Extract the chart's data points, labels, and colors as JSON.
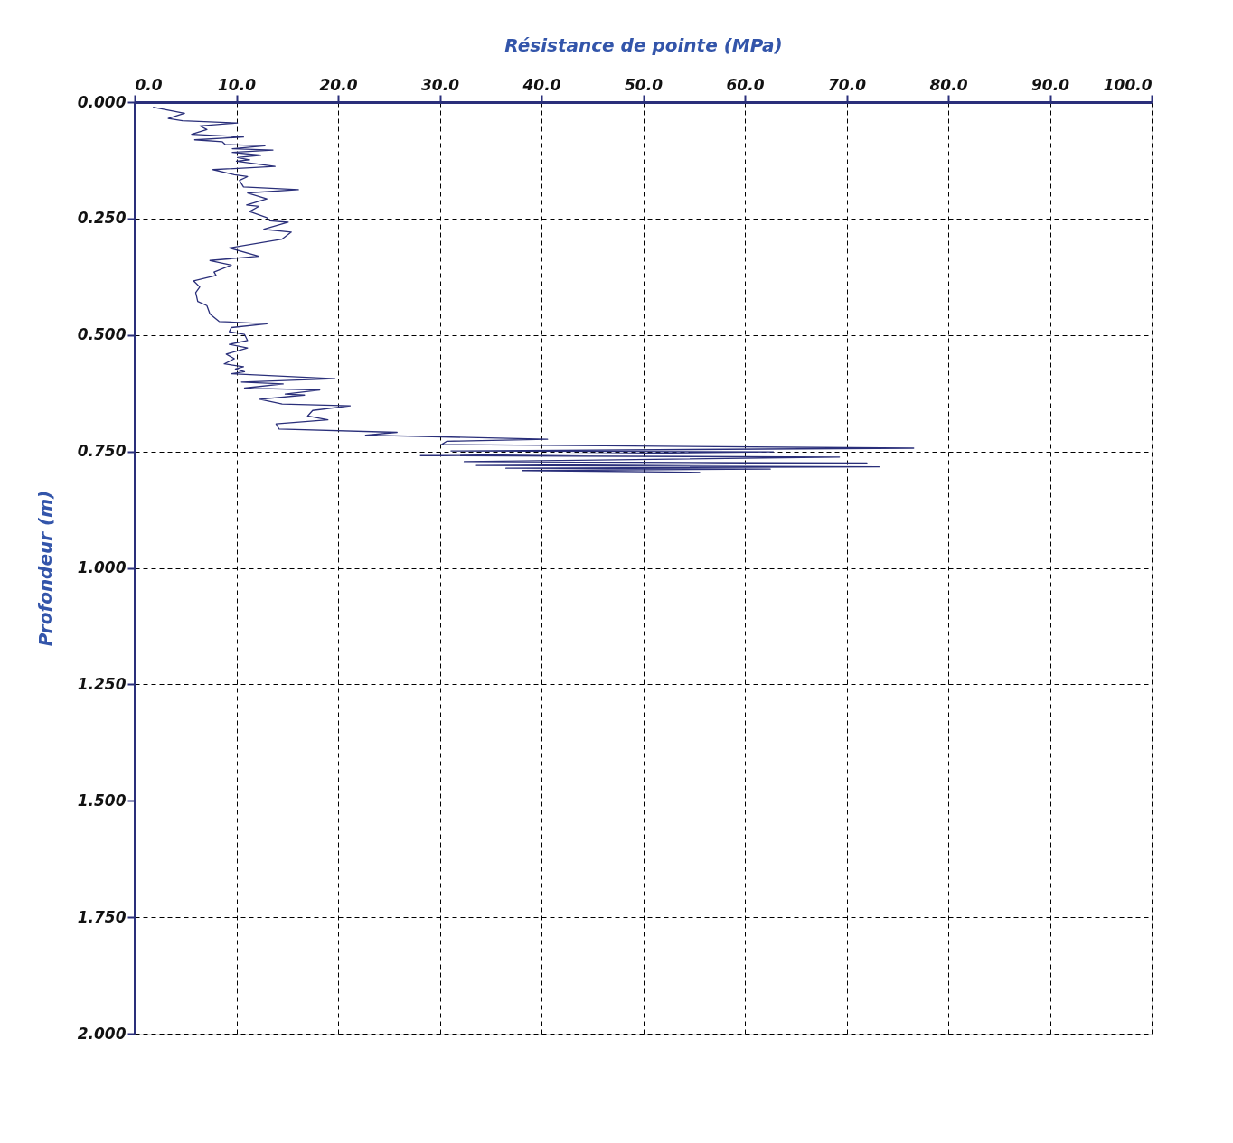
{
  "chart_data": {
    "type": "line",
    "xlabel": "Résistance de pointe (MPa)",
    "ylabel": "Profondeur (m)",
    "xlim": [
      0,
      100
    ],
    "xticks": [
      {
        "value": 0,
        "label": "0.0"
      },
      {
        "value": 10,
        "label": "10.0"
      },
      {
        "value": 20,
        "label": "20.0"
      },
      {
        "value": 30,
        "label": "30.0"
      },
      {
        "value": 40,
        "label": "40.0"
      },
      {
        "value": 50,
        "label": "50.0"
      },
      {
        "value": 60,
        "label": "60.0"
      },
      {
        "value": 70,
        "label": "70.0"
      },
      {
        "value": 80,
        "label": "80.0"
      },
      {
        "value": 90,
        "label": "90.0"
      },
      {
        "value": 100,
        "label": "100.0"
      }
    ],
    "ylim": [
      2.0,
      0.0
    ],
    "yticks": [
      {
        "value": 0,
        "label": "0.000"
      },
      {
        "value": 0.25,
        "label": "0.250"
      },
      {
        "value": 0.5,
        "label": "0.500"
      },
      {
        "value": 0.75,
        "label": "0.750"
      },
      {
        "value": 1.0,
        "label": "1.000"
      },
      {
        "value": 1.25,
        "label": "1.250"
      },
      {
        "value": 1.5,
        "label": "1.500"
      },
      {
        "value": 1.75,
        "label": "1.750"
      },
      {
        "value": 2.0,
        "label": "2.000"
      }
    ],
    "grid": true,
    "line_style": "solid",
    "marker": "none",
    "series": [
      {
        "color": "#2a2f7a",
        "x": [
          1.8,
          4.9,
          3.3,
          4.7,
          10.1,
          6.4,
          7.1,
          5.6,
          10.7,
          5.9,
          8.6,
          8.9,
          12.8,
          9.6,
          13.6,
          9.6,
          12.4,
          10.1,
          11.3,
          10.0,
          13.8,
          7.7,
          9.8,
          11.1,
          10.3,
          10.7,
          16.1,
          11.1,
          13.0,
          11.0,
          12.2,
          11.3,
          13.0,
          13.3,
          15.1,
          12.7,
          15.4,
          14.5,
          9.3,
          12.2,
          7.4,
          9.5,
          7.8,
          8.0,
          5.8,
          6.4,
          6.0,
          6.2,
          7.1,
          7.4,
          8.3,
          13.0,
          9.5,
          9.3,
          10.8,
          11.1,
          9.3,
          11.1,
          9.0,
          9.8,
          8.8,
          10.7,
          9.9,
          10.8,
          9.5,
          19.7,
          10.5,
          14.6,
          10.8,
          18.2,
          14.8,
          16.7,
          12.3,
          14.5,
          21.2,
          17.5,
          17.0,
          19.0,
          13.9,
          14.2,
          25.8,
          22.7,
          40.6,
          30.7,
          30.2,
          76.6,
          31.1,
          62.8,
          28.1,
          69.3,
          32.4,
          72.0,
          33.6,
          73.2,
          36.5,
          62.5,
          38.1,
          55.6
        ],
        "values": [
          0.011,
          0.024,
          0.035,
          0.04,
          0.045,
          0.051,
          0.059,
          0.069,
          0.075,
          0.081,
          0.085,
          0.091,
          0.094,
          0.1,
          0.103,
          0.108,
          0.114,
          0.119,
          0.124,
          0.127,
          0.138,
          0.145,
          0.156,
          0.16,
          0.168,
          0.182,
          0.188,
          0.195,
          0.208,
          0.221,
          0.224,
          0.235,
          0.248,
          0.255,
          0.258,
          0.273,
          0.279,
          0.294,
          0.313,
          0.331,
          0.34,
          0.35,
          0.365,
          0.372,
          0.384,
          0.397,
          0.409,
          0.428,
          0.437,
          0.455,
          0.471,
          0.476,
          0.484,
          0.493,
          0.499,
          0.512,
          0.52,
          0.528,
          0.541,
          0.551,
          0.562,
          0.568,
          0.573,
          0.579,
          0.583,
          0.594,
          0.601,
          0.605,
          0.614,
          0.618,
          0.627,
          0.629,
          0.638,
          0.648,
          0.652,
          0.662,
          0.674,
          0.682,
          0.691,
          0.702,
          0.709,
          0.715,
          0.724,
          0.728,
          0.735,
          0.743,
          0.749,
          0.751,
          0.759,
          0.762,
          0.772,
          0.775,
          0.78,
          0.783,
          0.786,
          0.788,
          0.791,
          0.795
        ]
      }
    ]
  }
}
